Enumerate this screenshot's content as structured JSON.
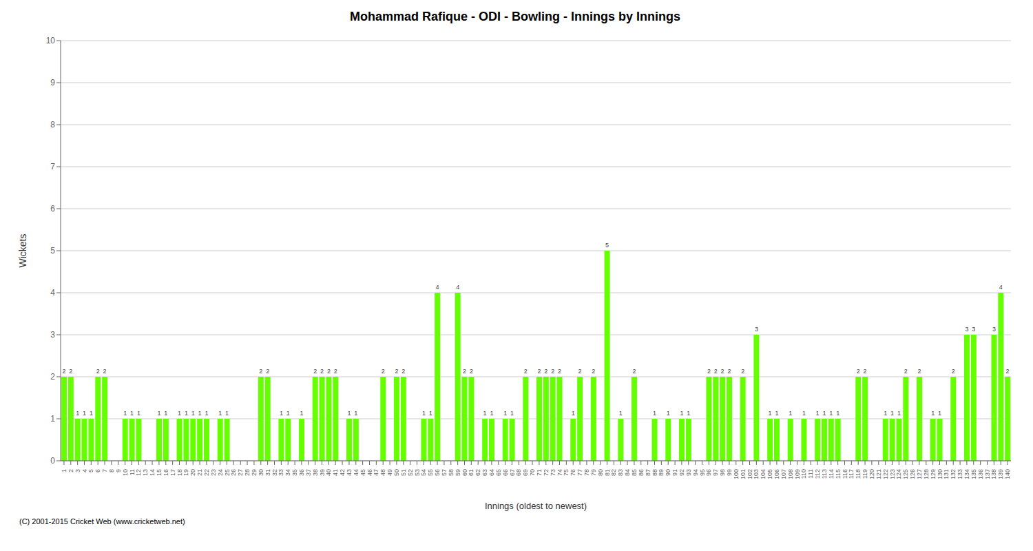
{
  "chart_data": {
    "type": "bar",
    "title": "Mohammad Rafique - ODI - Bowling - Innings by Innings",
    "xlabel": "Innings (oldest to newest)",
    "ylabel": "Wickets",
    "annotations": [
      "(C) 2001-2015 Cricket Web (www.cricketweb.net)"
    ],
    "categories": [
      "1",
      "2",
      "3",
      "4",
      "5",
      "6",
      "7",
      "8",
      "9",
      "10",
      "11",
      "12",
      "13",
      "14",
      "15",
      "16",
      "17",
      "18",
      "19",
      "20",
      "21",
      "22",
      "23",
      "24",
      "25",
      "26",
      "27",
      "28",
      "29",
      "30",
      "31",
      "32",
      "33",
      "34",
      "35",
      "36",
      "37",
      "38",
      "39",
      "40",
      "41",
      "42",
      "43",
      "44",
      "45",
      "46",
      "47",
      "48",
      "49",
      "50",
      "51",
      "52",
      "53",
      "54",
      "55",
      "56",
      "57",
      "58",
      "59",
      "60",
      "61",
      "62",
      "63",
      "64",
      "65",
      "66",
      "67",
      "68",
      "69",
      "70",
      "71",
      "72",
      "73",
      "74",
      "75",
      "76",
      "77",
      "78",
      "79",
      "80",
      "81",
      "82",
      "83",
      "84",
      "85",
      "86",
      "87",
      "88",
      "89",
      "90",
      "91",
      "92",
      "93",
      "94",
      "95",
      "96",
      "97",
      "98",
      "99",
      "100",
      "101",
      "102",
      "103",
      "104",
      "105",
      "106",
      "107",
      "108",
      "109",
      "110",
      "111",
      "112",
      "113",
      "114",
      "115",
      "116",
      "117",
      "118",
      "119",
      "120",
      "121",
      "122",
      "123",
      "124",
      "125",
      "126",
      "127",
      "128",
      "129",
      "130",
      "131",
      "132",
      "133",
      "134",
      "135",
      "136",
      "137",
      "138",
      "139",
      "140"
    ],
    "values": [
      2,
      2,
      1,
      1,
      1,
      2,
      2,
      0,
      0,
      1,
      1,
      1,
      0,
      0,
      1,
      1,
      0,
      1,
      1,
      1,
      1,
      1,
      0,
      1,
      1,
      0,
      0,
      0,
      0,
      2,
      2,
      0,
      1,
      1,
      0,
      1,
      0,
      2,
      2,
      2,
      2,
      0,
      1,
      1,
      0,
      0,
      0,
      2,
      0,
      2,
      2,
      0,
      0,
      1,
      1,
      4,
      0,
      0,
      4,
      2,
      2,
      0,
      1,
      1,
      0,
      1,
      1,
      0,
      2,
      0,
      2,
      2,
      2,
      2,
      0,
      1,
      2,
      0,
      2,
      0,
      5,
      0,
      1,
      0,
      2,
      0,
      0,
      1,
      0,
      1,
      0,
      1,
      1,
      0,
      0,
      2,
      2,
      2,
      2,
      0,
      2,
      0,
      3,
      0,
      1,
      1,
      0,
      1,
      0,
      1,
      0,
      1,
      1,
      1,
      1,
      0,
      0,
      2,
      2,
      0,
      0,
      1,
      1,
      1,
      2,
      0,
      2,
      0,
      1,
      1,
      0,
      2,
      0,
      3,
      3,
      0,
      0,
      3,
      4,
      2
    ],
    "color": "#66ff00",
    "ylim": [
      0,
      10
    ],
    "yticks": [
      0,
      1,
      2,
      3,
      4,
      5,
      6,
      7,
      8,
      9,
      10
    ],
    "grid": true,
    "data_labels": true
  }
}
